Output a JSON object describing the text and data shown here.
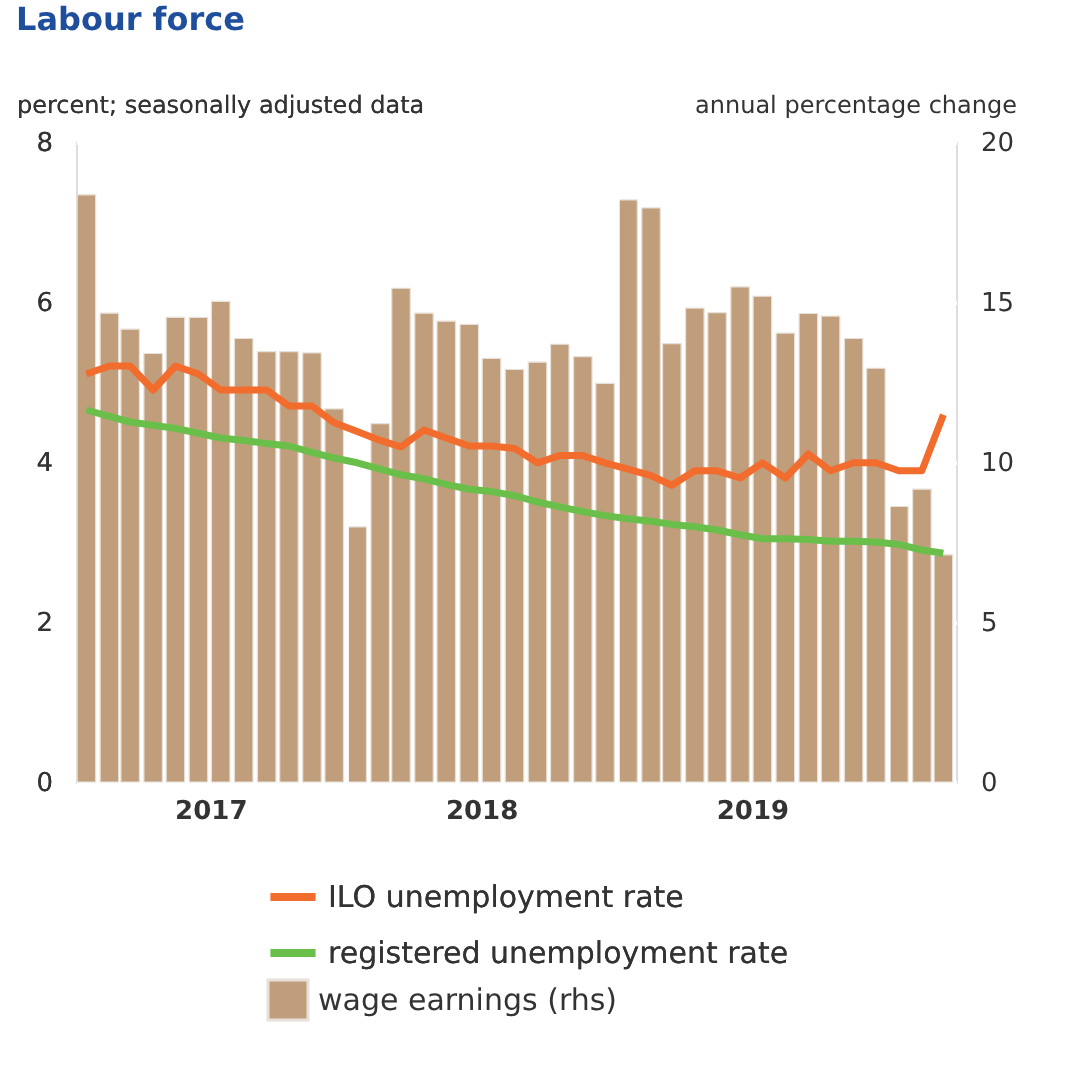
{
  "chart_data": {
    "type": "bar",
    "title": "Labour force",
    "ylabel": "percent; seasonally adjusted data",
    "y2label": "annual percentage change",
    "x": [
      "2017-01-15",
      "2017-02-15",
      "2017-03-15",
      "2017-04-15",
      "2017-05-15",
      "2017-06-15",
      "2017-07-15",
      "2017-08-15",
      "2017-09-15",
      "2017-10-15",
      "2017-11-15",
      "2017-12-15",
      "2018-01-15",
      "2018-02-15",
      "2018-03-15",
      "2018-04-15",
      "2018-05-15",
      "2018-06-15",
      "2018-07-15",
      "2018-08-15",
      "2018-09-15",
      "2018-10-15",
      "2018-11-15",
      "2018-12-15",
      "2019-01-15",
      "2019-02-15",
      "2019-03-15",
      "2019-04-15",
      "2019-05-15",
      "2019-06-15",
      "2019-07-15",
      "2019-08-15",
      "2019-09-15",
      "2019-10-15",
      "2019-11-15",
      "2019-12-15",
      "2020-01-15",
      "2020-02-15",
      "2020-03-15"
    ],
    "xlim": [
      "2017-01-01",
      "2020-04-01"
    ],
    "xticks": [
      {
        "value": "2017-07-01",
        "label": "2017"
      },
      {
        "value": "2018-01-01",
        "label": null
      },
      {
        "value": "2018-07-01",
        "label": "2018"
      },
      {
        "value": "2019-01-01",
        "label": null
      },
      {
        "value": "2019-07-01",
        "label": "2019"
      },
      {
        "value": "2020-01-01",
        "label": null
      }
    ],
    "ylim": [
      0,
      8
    ],
    "yticks": [
      0,
      2,
      4,
      6,
      8
    ],
    "y2lim": [
      0,
      20
    ],
    "y2ticks": [
      0,
      5,
      10,
      15,
      20
    ],
    "grid": true,
    "legend": "bottom",
    "series": [
      {
        "name": "wage earnings (rhs)",
        "axis": "y2",
        "color": "#c09d7b",
        "values": [
          18.35,
          14.65,
          14.15,
          13.39,
          14.52,
          14.52,
          15.02,
          13.86,
          13.45,
          13.45,
          13.41,
          11.66,
          7.97,
          11.2,
          15.43,
          14.65,
          14.4,
          14.3,
          13.24,
          12.89,
          13.12,
          13.68,
          13.29,
          12.46,
          18.19,
          17.94,
          13.7,
          14.81,
          14.67,
          15.47,
          15.18,
          14.03,
          14.64,
          14.56,
          13.86,
          12.93,
          8.61,
          9.15,
          7.1
        ]
      },
      {
        "name": "ILO unemployment rate",
        "type": "line",
        "color": "#f26c2d",
        "values": [
          5.1,
          5.2,
          5.2,
          4.9,
          5.2,
          5.1,
          4.9,
          4.9,
          4.9,
          4.7,
          4.7,
          4.49,
          4.38,
          4.27,
          4.19,
          4.4,
          4.3,
          4.2,
          4.2,
          4.17,
          3.99,
          4.08,
          4.08,
          3.99,
          3.91,
          3.83,
          3.71,
          3.89,
          3.89,
          3.8,
          3.99,
          3.8,
          4.1,
          3.89,
          3.99,
          3.99,
          3.89,
          3.89,
          4.59
        ]
      },
      {
        "name": "registered unemployment rate",
        "type": "line",
        "color": "#6abf4b",
        "values": [
          4.65,
          4.57,
          4.5,
          4.46,
          4.42,
          4.36,
          4.3,
          4.27,
          4.23,
          4.2,
          4.12,
          4.05,
          3.99,
          3.91,
          3.84,
          3.79,
          3.72,
          3.66,
          3.63,
          3.58,
          3.5,
          3.44,
          3.38,
          3.33,
          3.29,
          3.26,
          3.22,
          3.19,
          3.15,
          3.09,
          3.04,
          3.04,
          3.03,
          3.01,
          3.01,
          3.0,
          2.97,
          2.9,
          2.86
        ]
      }
    ]
  }
}
